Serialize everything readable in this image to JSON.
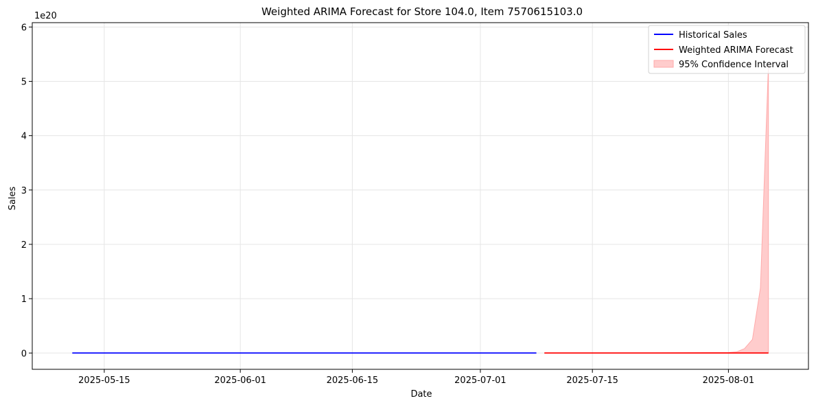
{
  "chart_data": {
    "type": "line",
    "title": "Weighted ARIMA Forecast for Store 104.0, Item 7570615103.0",
    "xlabel": "Date",
    "ylabel": "Sales",
    "y_offset_label": "1e20",
    "xlim": [
      "2025-05-06",
      "2025-08-11"
    ],
    "ylim": [
      -0.3,
      6.08
    ],
    "y_unit_multiplier": 1e+20,
    "x_ticks": [
      "2025-05-15",
      "2025-06-01",
      "2025-06-15",
      "2025-07-01",
      "2025-07-15",
      "2025-08-01"
    ],
    "y_ticks": [
      0,
      1,
      2,
      3,
      4,
      5,
      6
    ],
    "grid": true,
    "legend_position": "top-right",
    "colors": {
      "historical": "#0000ff",
      "forecast": "#ff0000",
      "confidence_fill": "#ffcccc",
      "confidence_edge": "#ffaaaa"
    },
    "series": [
      {
        "name": "Historical Sales",
        "kind": "line",
        "x": [
          "2025-05-11",
          "2025-07-08"
        ],
        "y": [
          0,
          0
        ]
      },
      {
        "name": "Weighted ARIMA Forecast",
        "kind": "line",
        "x": [
          "2025-07-09",
          "2025-08-06"
        ],
        "y": [
          0,
          0
        ]
      },
      {
        "name": "95% Confidence Interval",
        "kind": "band",
        "x": [
          "2025-07-09",
          "2025-07-20",
          "2025-08-01",
          "2025-08-02",
          "2025-08-03",
          "2025-08-04",
          "2025-08-05",
          "2025-08-06"
        ],
        "lower": [
          0,
          0,
          0,
          0,
          0,
          0,
          0,
          0
        ],
        "upper": [
          0,
          0.001,
          0.01,
          0.02,
          0.08,
          0.25,
          1.2,
          5.3
        ]
      }
    ]
  }
}
